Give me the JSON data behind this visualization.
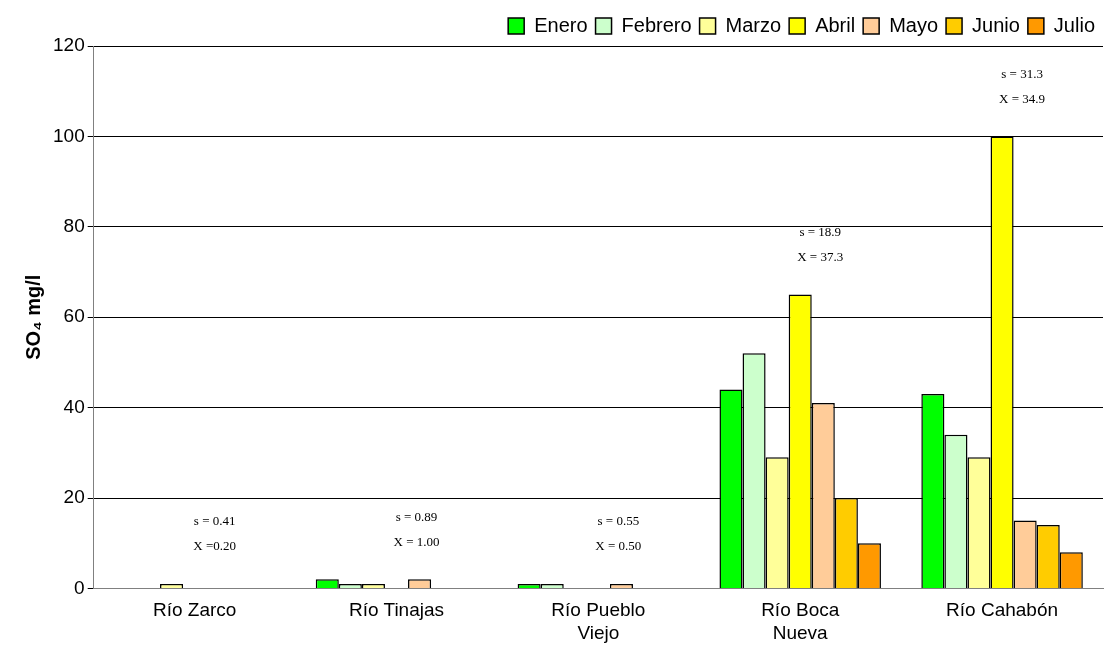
{
  "chart_data": {
    "type": "bar",
    "ylabel": "SO₄ mg/l",
    "categories": [
      "Río Zarco",
      "Río Tinajas",
      "Río Pueblo Viejo",
      "Río Boca Nueva",
      "Río Cahabón"
    ],
    "series": [
      {
        "name": "Enero",
        "color": "#00ff00",
        "values": [
          null,
          2,
          1,
          44,
          43
        ]
      },
      {
        "name": "Febrero",
        "color": "#ccffcc",
        "values": [
          null,
          1,
          1,
          52,
          34
        ]
      },
      {
        "name": "Marzo",
        "color": "#ffff99",
        "values": [
          1,
          1,
          null,
          29,
          29
        ]
      },
      {
        "name": "Abril",
        "color": "#ffff00",
        "values": [
          null,
          null,
          null,
          65,
          100
        ]
      },
      {
        "name": "Mayo",
        "color": "#ffcc99",
        "values": [
          null,
          2,
          1,
          41,
          15
        ]
      },
      {
        "name": "Junio",
        "color": "#ffcc00",
        "values": [
          null,
          null,
          null,
          20,
          14
        ]
      },
      {
        "name": "Julio",
        "color": "#ff9900",
        "values": [
          null,
          null,
          null,
          10,
          8
        ]
      }
    ],
    "ylim": [
      0,
      120
    ],
    "yticks": [
      0,
      20,
      40,
      60,
      80,
      100,
      120
    ],
    "grid": "y",
    "legend": "top right",
    "annotations": [
      "s = 0.41",
      "X =0.20",
      "s = 0.89",
      "X = 1.00",
      "s = 0.55",
      "X = 0.50",
      "s = 18.9",
      "X = 37.3",
      "s = 31.3",
      "X = 34.9"
    ]
  }
}
